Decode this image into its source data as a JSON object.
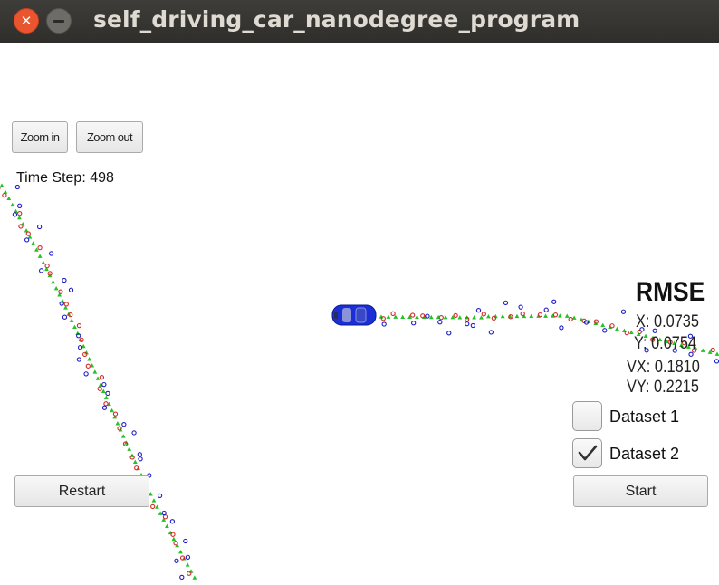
{
  "window": {
    "title": "self_driving_car_nanodegree_program"
  },
  "controls": {
    "zoom_in": "Zoom in",
    "zoom_out": "Zoom out",
    "restart": "Restart",
    "start": "Start"
  },
  "time_step": {
    "label": "Time Step: 498"
  },
  "rmse": {
    "title": "RMSE",
    "x": "X: 0.0735",
    "y": "Y: 0.0754",
    "vx": "VX: 0.1810",
    "vy": "VY: 0.2215"
  },
  "datasets": [
    {
      "label": "Dataset 1",
      "checked": false
    },
    {
      "label": "Dataset 2",
      "checked": true
    }
  ],
  "colors": {
    "ground_truth": "#22c322",
    "lidar": "#d42a2a",
    "radar": "#1e1ec8",
    "car": "#1a2fd6"
  },
  "icons": {
    "close": "close-icon",
    "minimize": "minimize-icon",
    "car": "car-icon",
    "check": "check-icon"
  }
}
